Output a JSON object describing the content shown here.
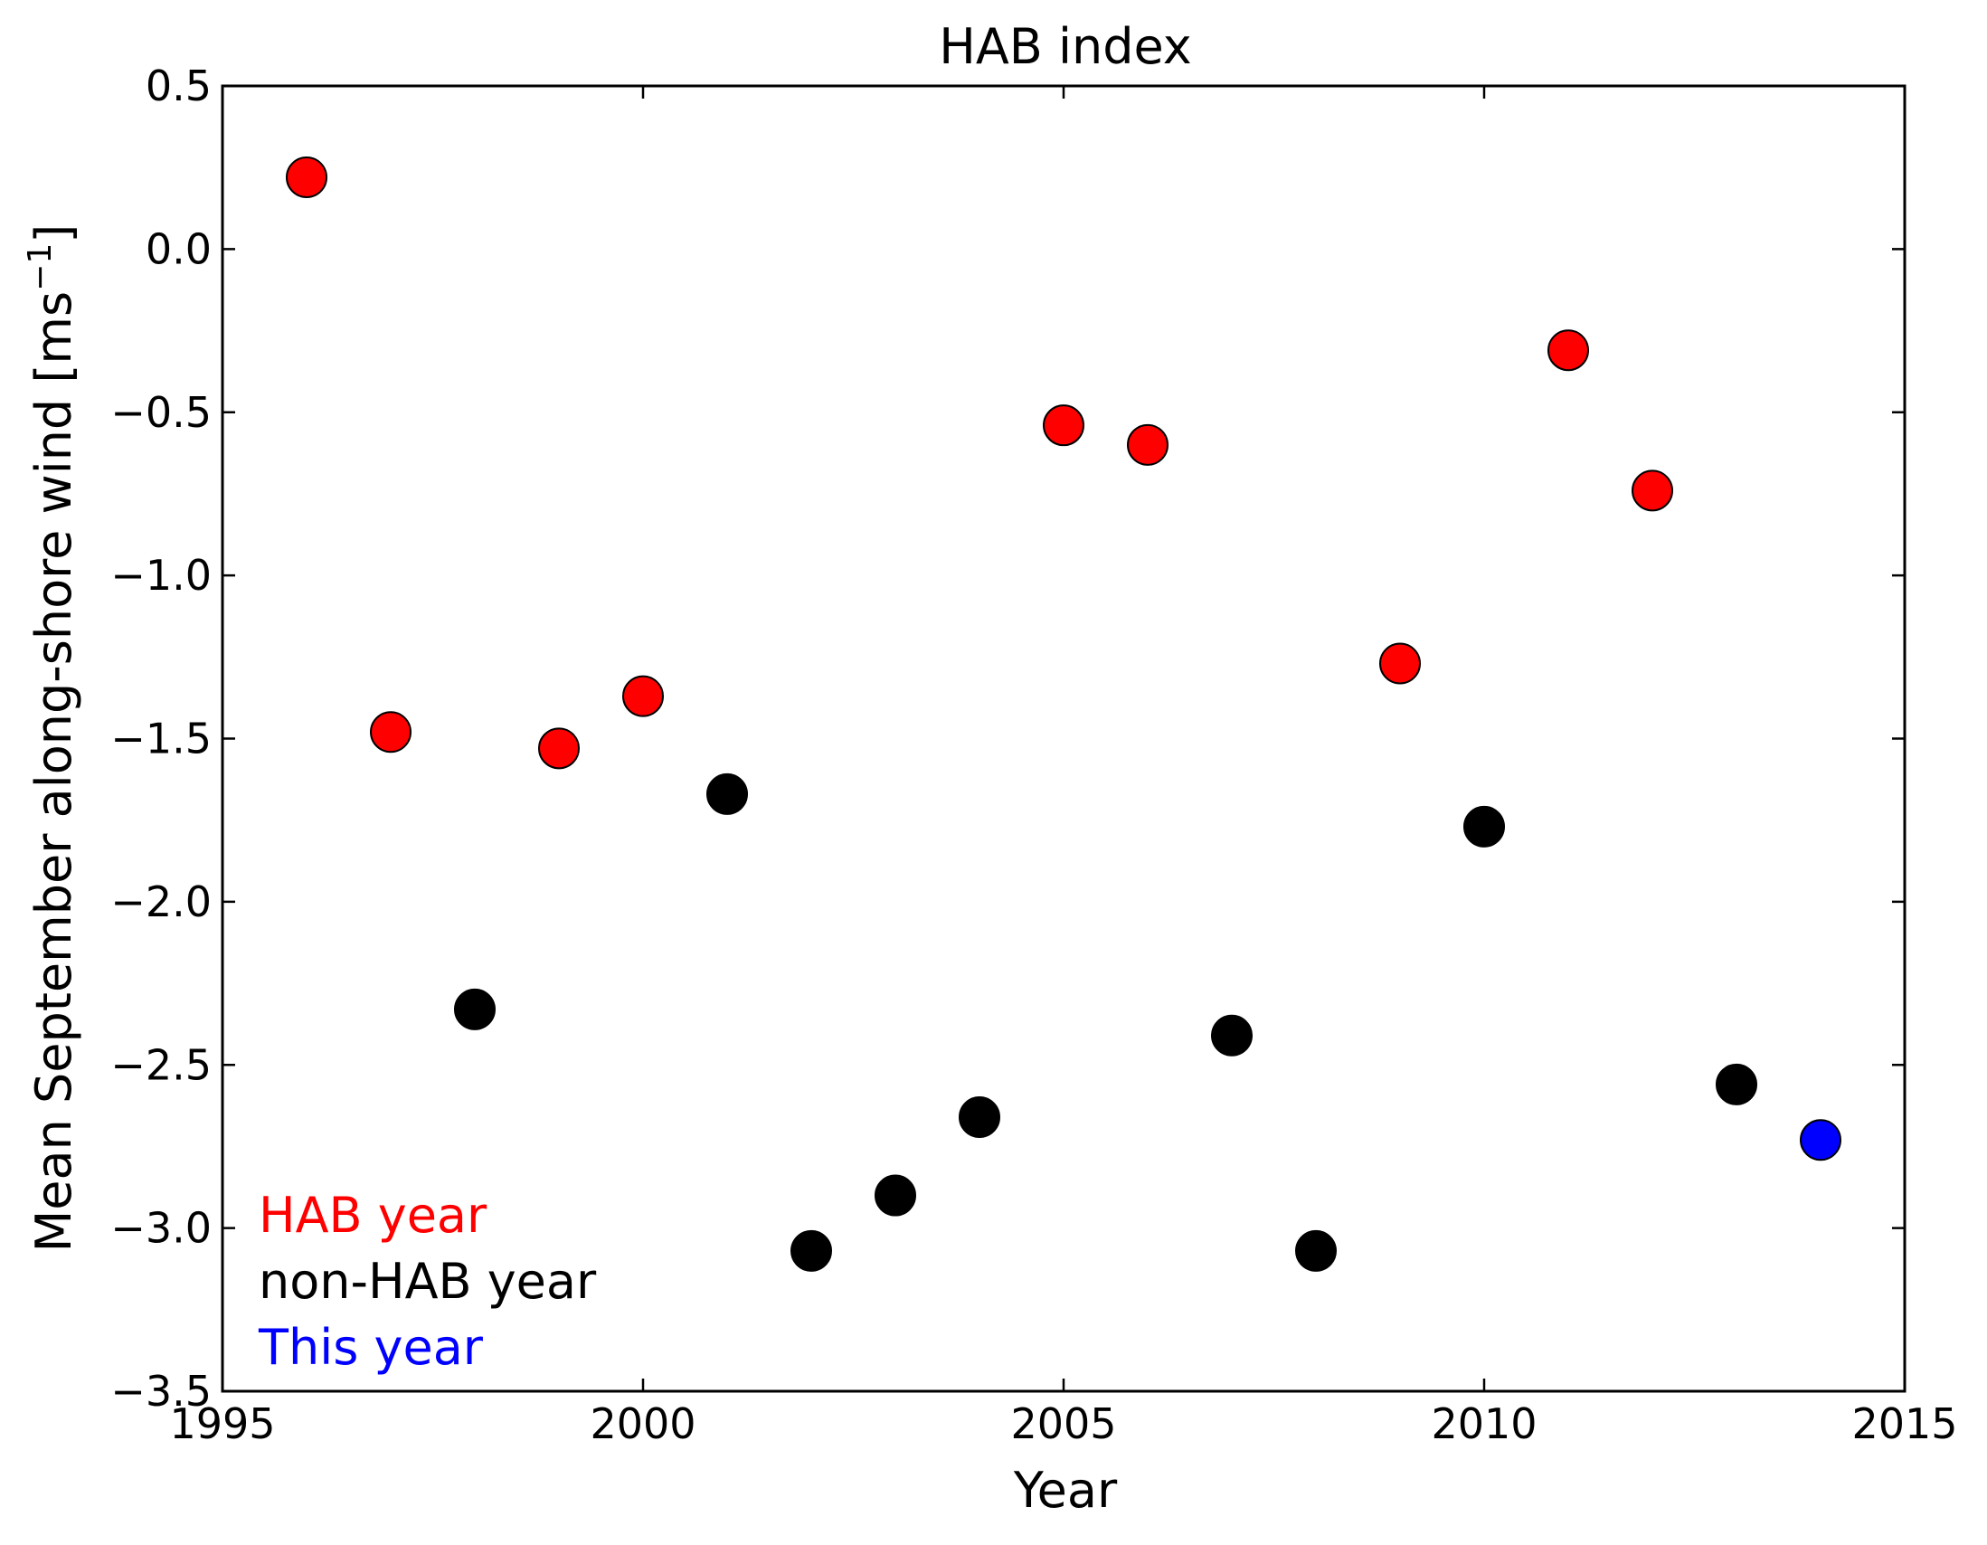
{
  "chart_data": {
    "type": "scatter",
    "title": "HAB index",
    "xlabel": "Year",
    "ylabel": "Mean September along-shore wind [ms",
    "ylabel_superscript": "−1",
    "ylabel_suffix": "]",
    "xlim": [
      1995,
      2015
    ],
    "ylim": [
      -3.5,
      0.5
    ],
    "x_ticks": [
      1995,
      2000,
      2005,
      2010,
      2015
    ],
    "x_tick_labels": [
      "1995",
      "2000",
      "2005",
      "2010",
      "2015"
    ],
    "y_ticks": [
      0.5,
      0.0,
      -0.5,
      -1.0,
      -1.5,
      -2.0,
      -2.5,
      -3.0,
      -3.5
    ],
    "y_tick_labels": [
      "0.5",
      "0.0",
      "−0.5",
      "−1.0",
      "−1.5",
      "−2.0",
      "−2.5",
      "−3.0",
      "−3.5"
    ],
    "grid": false,
    "legend_placement": "bottom-left",
    "series": [
      {
        "name": "HAB year",
        "color": "#ff0000",
        "points": [
          {
            "x": 1996,
            "y": 0.22
          },
          {
            "x": 1997,
            "y": -1.48
          },
          {
            "x": 1999,
            "y": -1.53
          },
          {
            "x": 2000,
            "y": -1.37
          },
          {
            "x": 2005,
            "y": -0.54
          },
          {
            "x": 2006,
            "y": -0.6
          },
          {
            "x": 2009,
            "y": -1.27
          },
          {
            "x": 2011,
            "y": -0.31
          },
          {
            "x": 2012,
            "y": -0.74
          }
        ]
      },
      {
        "name": "non-HAB year",
        "color": "#000000",
        "points": [
          {
            "x": 1998,
            "y": -2.33
          },
          {
            "x": 2001,
            "y": -1.67
          },
          {
            "x": 2002,
            "y": -3.07
          },
          {
            "x": 2003,
            "y": -2.9
          },
          {
            "x": 2004,
            "y": -2.66
          },
          {
            "x": 2007,
            "y": -2.41
          },
          {
            "x": 2008,
            "y": -3.07
          },
          {
            "x": 2010,
            "y": -1.77
          },
          {
            "x": 2013,
            "y": -2.56
          }
        ]
      },
      {
        "name": "This year",
        "color": "#0000ff",
        "points": [
          {
            "x": 2014,
            "y": -2.73
          }
        ]
      }
    ]
  }
}
